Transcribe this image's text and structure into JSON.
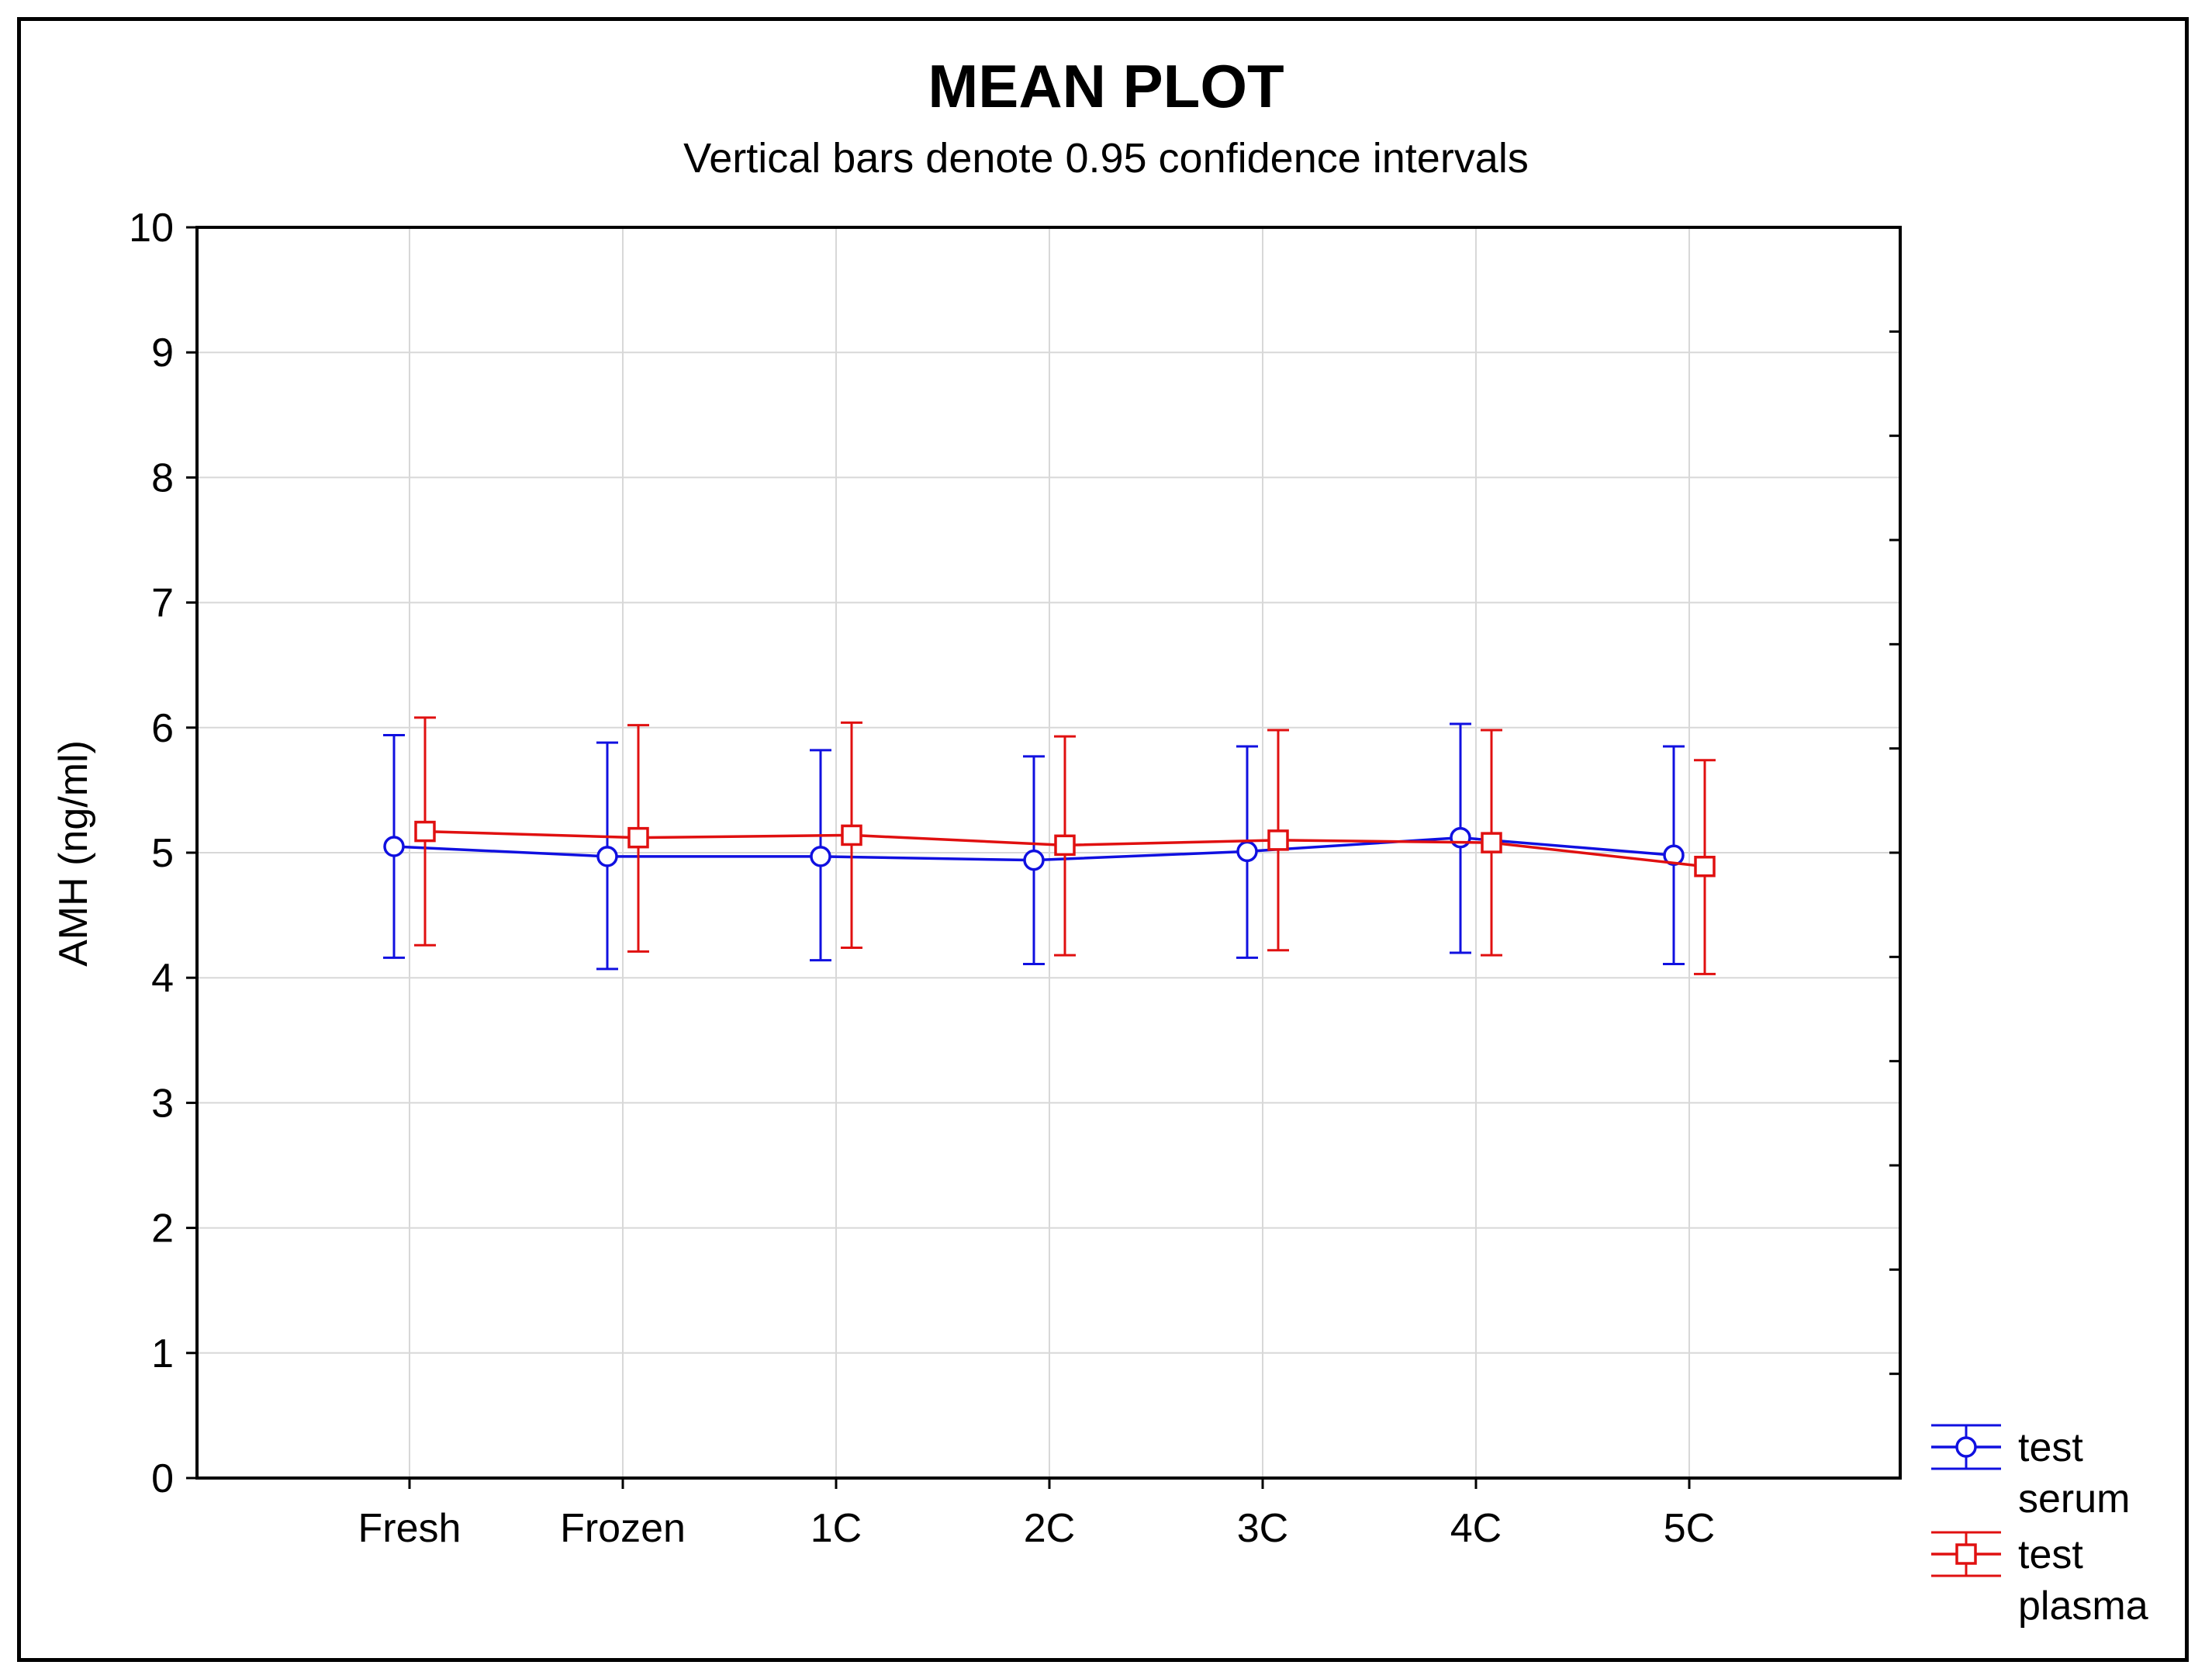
{
  "chart_data": {
    "type": "line",
    "title": "MEAN PLOT",
    "subtitle": "Vertical bars denote 0.95 confidence intervals",
    "xlabel": "",
    "ylabel": "AMH (ng/ml)",
    "ylim": [
      0,
      10
    ],
    "yticks": [
      0,
      1,
      2,
      3,
      4,
      5,
      6,
      7,
      8,
      9,
      10
    ],
    "grid": true,
    "legend_position": "bottom-right outside",
    "categories": [
      "Fresh",
      "Frozen",
      "1C",
      "2C",
      "3C",
      "4C",
      "5C"
    ],
    "series": [
      {
        "name": "test serum",
        "legend_lines": [
          "test",
          "serum"
        ],
        "color": "#1010e0",
        "marker": "circle",
        "values": [
          5.05,
          4.97,
          4.97,
          4.94,
          5.01,
          5.12,
          4.98
        ],
        "lower": [
          4.16,
          4.07,
          4.14,
          4.11,
          4.16,
          4.2,
          4.11
        ],
        "upper": [
          5.94,
          5.88,
          5.82,
          5.77,
          5.85,
          6.03,
          5.85
        ]
      },
      {
        "name": "test plasma",
        "legend_lines": [
          "test",
          "plasma"
        ],
        "color": "#e01010",
        "marker": "square",
        "values": [
          5.17,
          5.12,
          5.14,
          5.06,
          5.1,
          5.08,
          4.89
        ],
        "lower": [
          4.26,
          4.21,
          4.24,
          4.18,
          4.22,
          4.18,
          4.03
        ],
        "upper": [
          6.08,
          6.02,
          6.04,
          5.93,
          5.98,
          5.98,
          5.74
        ]
      }
    ]
  }
}
